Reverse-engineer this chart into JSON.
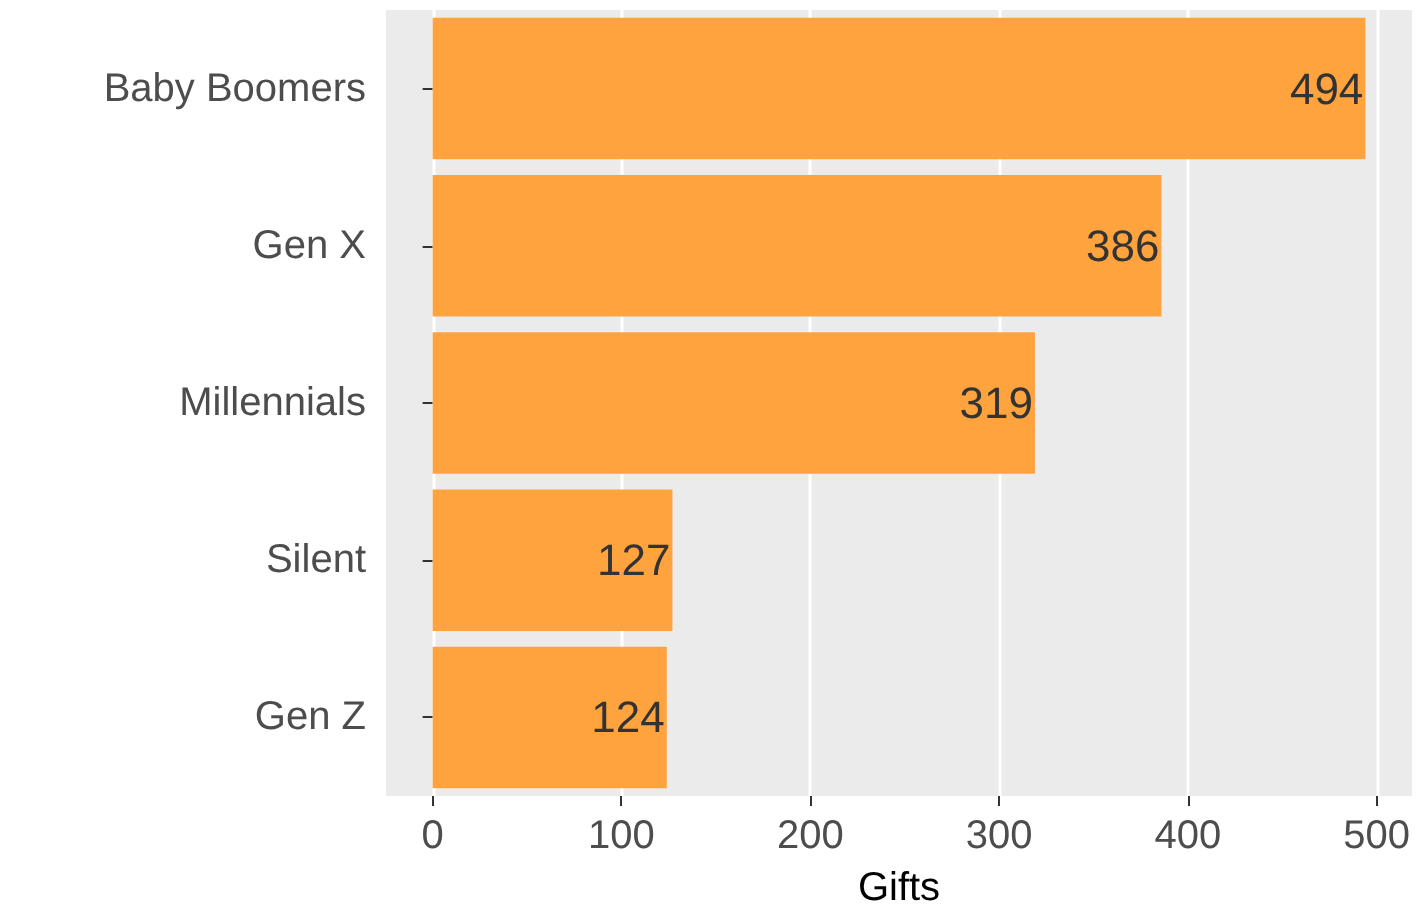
{
  "chart_data": {
    "type": "bar",
    "orientation": "horizontal",
    "xlabel": "Gifts",
    "categories": [
      "Baby Boomers",
      "Gen X",
      "Millennials",
      "Silent",
      "Gen Z"
    ],
    "values": [
      494,
      386,
      319,
      127,
      124
    ],
    "color": "#ffa33f",
    "data_labels": true,
    "xlim": [
      -24.7,
      518.7
    ],
    "xticks": [
      0,
      100,
      200,
      300,
      400,
      500
    ],
    "grid": true
  }
}
